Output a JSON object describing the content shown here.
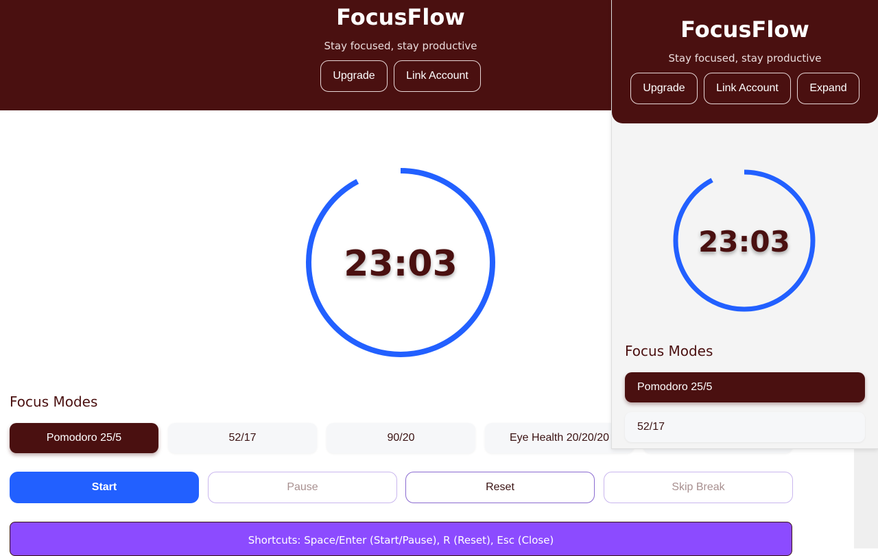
{
  "app": {
    "title": "FocusFlow",
    "tagline": "Stay focused, stay productive"
  },
  "header": {
    "upgrade": "Upgrade",
    "link_account": "Link Account",
    "expand": "Expand"
  },
  "timer": {
    "display": "23:03",
    "remaining_fraction": 0.922,
    "ring_color": "#2260ff"
  },
  "modes": {
    "heading": "Focus Modes",
    "items": [
      {
        "label": "Pomodoro 25/5",
        "active": true
      },
      {
        "label": "52/17"
      },
      {
        "label": "90/20"
      },
      {
        "label": "Eye Health 20/20/20"
      },
      {
        "label": ""
      }
    ]
  },
  "controls": {
    "start": "Start",
    "pause": "Pause",
    "reset": "Reset",
    "skip": "Skip Break"
  },
  "shortcuts": "Shortcuts: Space/Enter (Start/Pause), R (Reset), Esc (Close)",
  "colors": {
    "brand": "#4a1010",
    "accent": "#2260ff",
    "shortcuts_bg": "#8c4bff"
  }
}
